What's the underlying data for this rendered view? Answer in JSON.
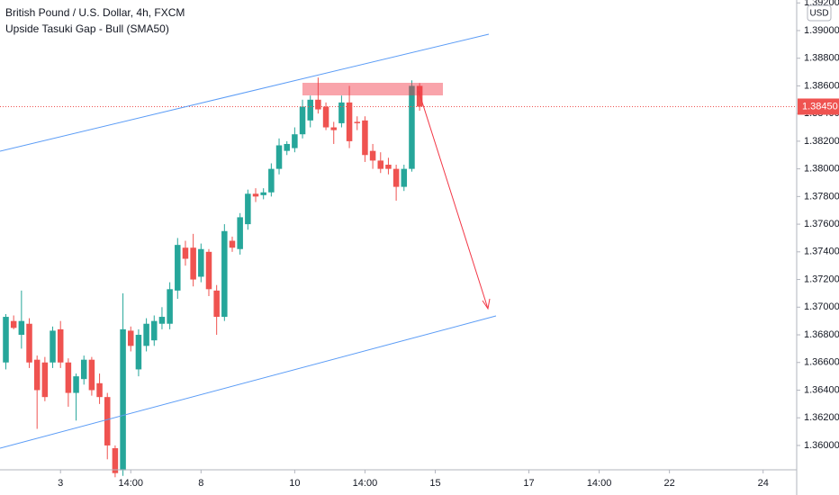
{
  "chart_data": {
    "type": "candlestick",
    "title": "British Pound / U.S. Dollar, 4h, FXCM",
    "subtitle": "Upside Tasuki Gap - Bull (SMA50)",
    "currency": "USD",
    "colors": {
      "up": "#26a69a",
      "down": "#ef5350"
    },
    "open": [
      1.366,
      1.369,
      1.368,
      1.3688,
      1.3662,
      1.366,
      1.366,
      1.3684,
      1.366,
      1.3638,
      1.3648,
      1.3662,
      1.3645,
      1.3635,
      1.3598,
      1.3582,
      1.3683,
      1.3655,
      1.3672,
      1.3676,
      1.3688,
      1.3688,
      1.3712,
      1.3743,
      1.3743,
      1.3722,
      1.374,
      1.3712,
      1.3693,
      1.3748,
      1.3742,
      1.376,
      1.3782,
      1.3781,
      1.3783,
      1.38,
      1.3813,
      1.3815,
      1.3825,
      1.3835,
      1.385,
      1.3845,
      1.383,
      1.3833,
      1.3848,
      1.3834,
      1.3835,
      1.3813,
      1.3806,
      1.3803,
      1.38,
      1.3787,
      1.38,
      1.386
    ],
    "high": [
      1.3695,
      1.3694,
      1.3712,
      1.3692,
      1.3665,
      1.3664,
      1.3686,
      1.369,
      1.3663,
      1.3652,
      1.3665,
      1.3664,
      1.3652,
      1.3638,
      1.36,
      1.371,
      1.3686,
      1.3684,
      1.3692,
      1.3694,
      1.37,
      1.3718,
      1.375,
      1.3748,
      1.3753,
      1.3746,
      1.3742,
      1.3716,
      1.376,
      1.3751,
      1.3768,
      1.3785,
      1.3786,
      1.3786,
      1.3804,
      1.3822,
      1.382,
      1.383,
      1.385,
      1.3853,
      1.3866,
      1.3848,
      1.3834,
      1.3853,
      1.386,
      1.3838,
      1.3838,
      1.3818,
      1.3812,
      1.3808,
      1.3803,
      1.3803,
      1.3864,
      1.3862
    ],
    "low": [
      1.3655,
      1.3684,
      1.367,
      1.3656,
      1.3612,
      1.3632,
      1.3656,
      1.3656,
      1.3628,
      1.3618,
      1.3644,
      1.3636,
      1.363,
      1.359,
      1.3577,
      1.3578,
      1.3668,
      1.365,
      1.3668,
      1.3672,
      1.3684,
      1.3684,
      1.3706,
      1.373,
      1.3715,
      1.3718,
      1.3708,
      1.368,
      1.369,
      1.374,
      1.3738,
      1.3756,
      1.3776,
      1.3778,
      1.378,
      1.3796,
      1.381,
      1.3812,
      1.3822,
      1.383,
      1.384,
      1.3828,
      1.3818,
      1.383,
      1.3815,
      1.3828,
      1.3805,
      1.38,
      1.3797,
      1.3796,
      1.3777,
      1.3784,
      1.3798,
      1.3842
    ],
    "close": [
      1.3693,
      1.3685,
      1.369,
      1.366,
      1.364,
      1.3635,
      1.3683,
      1.366,
      1.3638,
      1.365,
      1.3662,
      1.364,
      1.3635,
      1.36,
      1.358,
      1.3684,
      1.3672,
      1.368,
      1.3688,
      1.369,
      1.3693,
      1.3713,
      1.3745,
      1.3735,
      1.372,
      1.3742,
      1.3713,
      1.3693,
      1.3755,
      1.3743,
      1.3765,
      1.3782,
      1.378,
      1.3783,
      1.38,
      1.3817,
      1.3818,
      1.3825,
      1.3845,
      1.385,
      1.3843,
      1.383,
      1.3828,
      1.3848,
      1.382,
      1.3833,
      1.381,
      1.3806,
      1.38,
      1.38,
      1.3787,
      1.38,
      1.386,
      1.3845
    ],
    "xlim": [
      -0.75,
      101.3
    ],
    "xticks": [
      {
        "value": 7,
        "label": "3"
      },
      {
        "value": 16,
        "label": "14:00"
      },
      {
        "value": 25,
        "label": "8"
      },
      {
        "value": 37,
        "label": "10"
      },
      {
        "value": 46,
        "label": "14:00"
      },
      {
        "value": 55,
        "label": "15"
      },
      {
        "value": 67,
        "label": "17"
      },
      {
        "value": 76,
        "label": "14:00"
      },
      {
        "value": 85,
        "label": "22"
      },
      {
        "value": 97,
        "label": "24"
      }
    ],
    "ylim": [
      1.35824,
      1.39221
    ],
    "yticks": [
      {
        "value": 1.392,
        "label": "1.39200"
      },
      {
        "value": 1.39,
        "label": "1.39000"
      },
      {
        "value": 1.388,
        "label": "1.38800"
      },
      {
        "value": 1.386,
        "label": "1.38600"
      },
      {
        "value": 1.384,
        "label": "1.38400"
      },
      {
        "value": 1.382,
        "label": "1.38200"
      },
      {
        "value": 1.38,
        "label": "1.38000"
      },
      {
        "value": 1.378,
        "label": "1.37800"
      },
      {
        "value": 1.376,
        "label": "1.37600"
      },
      {
        "value": 1.374,
        "label": "1.37400"
      },
      {
        "value": 1.372,
        "label": "1.37200"
      },
      {
        "value": 1.37,
        "label": "1.37000"
      },
      {
        "value": 1.368,
        "label": "1.36800"
      },
      {
        "value": 1.366,
        "label": "1.36600"
      },
      {
        "value": 1.364,
        "label": "1.36400"
      },
      {
        "value": 1.362,
        "label": "1.36200"
      },
      {
        "value": 1.36,
        "label": "1.36000"
      }
    ],
    "last_price": {
      "value": 1.3845,
      "label": "1.38450"
    }
  }
}
